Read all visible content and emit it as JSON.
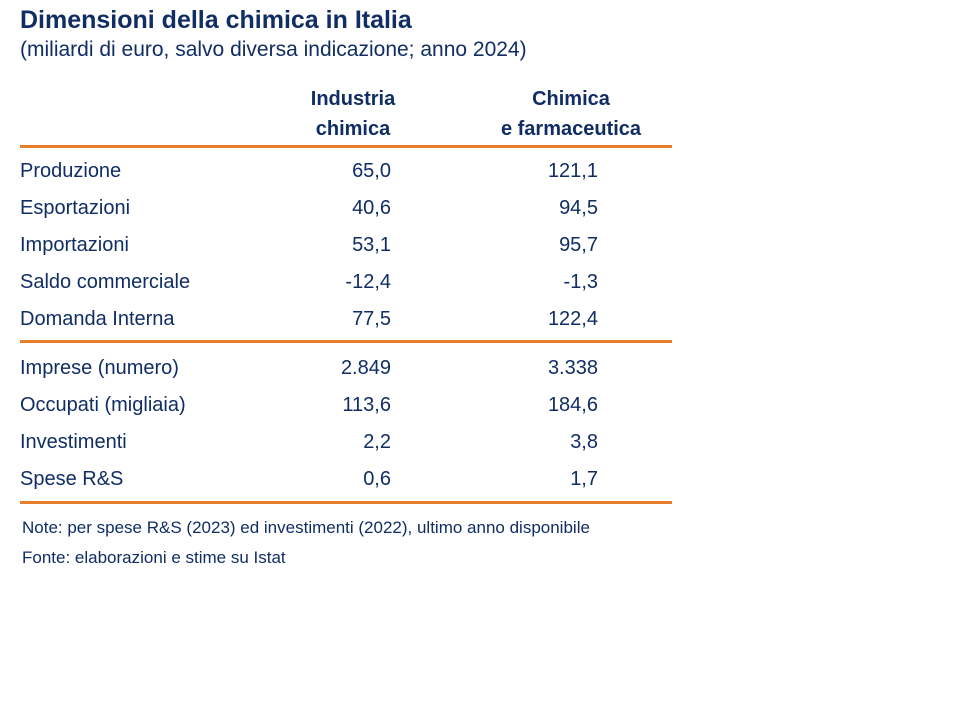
{
  "slide": {
    "title": "Dimensioni della chimica in Italia",
    "subtitle": "(miliardi di euro, salvo diversa indicazione; anno 2024)",
    "note": "Note: per spese R&S (2023) ed investimenti (2022), ultimo anno disponibile",
    "source": "Fonte: elaborazioni e stime su Istat"
  },
  "colors": {
    "text_navy": "#102D64",
    "rule_orange": "#E87E2B",
    "background": "#FFFFFF"
  },
  "table": {
    "column_headers": [
      {
        "line1": "Industria",
        "line2": "chimica"
      },
      {
        "line1": "Chimica",
        "line2": "e farmaceutica"
      }
    ],
    "sections": [
      {
        "rows": [
          {
            "label": "Produzione",
            "industria": "65,0",
            "chimica_farma": "121,1"
          },
          {
            "label": "Esportazioni",
            "industria": "40,6",
            "chimica_farma": "94,5"
          },
          {
            "label": "Importazioni",
            "industria": "53,1",
            "chimica_farma": "95,7"
          },
          {
            "label": "Saldo commerciale",
            "industria": "-12,4",
            "chimica_farma": "-1,3"
          },
          {
            "label": "Domanda Interna",
            "industria": "77,5",
            "chimica_farma": "122,4"
          }
        ]
      },
      {
        "rows": [
          {
            "label": "Imprese (numero)",
            "industria": "2.849",
            "chimica_farma": "3.338"
          },
          {
            "label": "Occupati (migliaia)",
            "industria": "113,6",
            "chimica_farma": "184,6"
          },
          {
            "label": "Investimenti",
            "industria": "2,2",
            "chimica_farma": "3,8"
          },
          {
            "label": "Spese R&S",
            "industria": "0,6",
            "chimica_farma": "1,7"
          }
        ]
      }
    ]
  }
}
